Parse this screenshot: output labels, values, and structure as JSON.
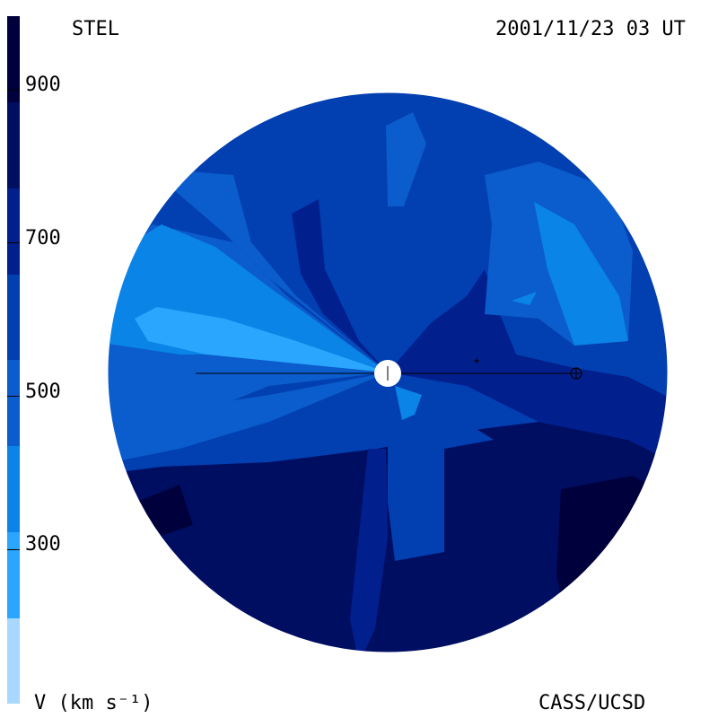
{
  "header": {
    "instrument": "STEL",
    "timestamp": "2001/11/23 03 UT",
    "credit": "CASS/UCSD"
  },
  "colorbar": {
    "label": "V (km s⁻¹)",
    "ticks": [
      "900",
      "700",
      "500",
      "300"
    ],
    "colors": [
      "#a8d8ff",
      "#2aa6ff",
      "#0a84e6",
      "#0b5ccc",
      "#023fb0",
      "#021f8e",
      "#000e62",
      "#00003c"
    ]
  },
  "palette": {
    "v300_400": "#0a84e6",
    "v400_500": "#0b5ccc",
    "v500_600": "#023fb0",
    "v600_700": "#021f8e",
    "v700_800": "#000e62",
    "v800_900": "#00003c",
    "v200_300": "#2aa6ff",
    "sun": "#ffffff"
  }
}
